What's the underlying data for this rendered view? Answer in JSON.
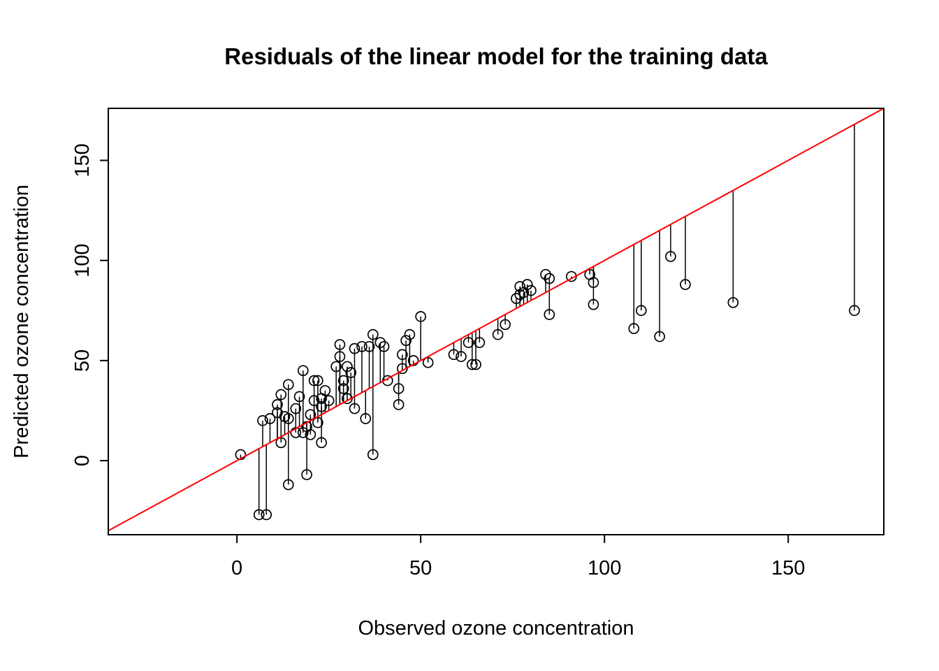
{
  "figure": {
    "title": "Residuals of the linear model for the training data",
    "xlabel": "Observed ozone concentration",
    "ylabel": "Predicted ozone concentration"
  },
  "chart_data": {
    "type": "scatter",
    "title": "Residuals of the linear model for the training data",
    "xlabel": "Observed ozone concentration",
    "ylabel": "Predicted ozone concentration",
    "xlim": [
      -35,
      176
    ],
    "ylim": [
      -37,
      176
    ],
    "x_ticks": [
      0,
      50,
      100,
      150
    ],
    "y_ticks": [
      0,
      50,
      100,
      150
    ],
    "grid": false,
    "legend": "none",
    "identity_line": {
      "equation": "y = x",
      "color": "#ff0000"
    },
    "residual_segments": {
      "shown": true,
      "color": "#000000"
    },
    "point_style": {
      "shape": "open-circle",
      "color": "#000000",
      "radius_px": 7
    },
    "points": [
      [
        1,
        3
      ],
      [
        6,
        -27
      ],
      [
        8,
        -27
      ],
      [
        7,
        20
      ],
      [
        9,
        21
      ],
      [
        11,
        28
      ],
      [
        11,
        24
      ],
      [
        12,
        9
      ],
      [
        12,
        33
      ],
      [
        13,
        22
      ],
      [
        14,
        38
      ],
      [
        14,
        21
      ],
      [
        14,
        -12
      ],
      [
        16,
        26
      ],
      [
        16,
        14
      ],
      [
        17,
        32
      ],
      [
        18,
        45
      ],
      [
        18,
        14
      ],
      [
        19,
        17
      ],
      [
        19,
        -7
      ],
      [
        20,
        13
      ],
      [
        20,
        23
      ],
      [
        21,
        30
      ],
      [
        21,
        40
      ],
      [
        22,
        19
      ],
      [
        22,
        40
      ],
      [
        23,
        27
      ],
      [
        23,
        31
      ],
      [
        23,
        9
      ],
      [
        24,
        35
      ],
      [
        25,
        30
      ],
      [
        27,
        47
      ],
      [
        28,
        58
      ],
      [
        28,
        52
      ],
      [
        29,
        36
      ],
      [
        29,
        40
      ],
      [
        30,
        31
      ],
      [
        30,
        47
      ],
      [
        31,
        44
      ],
      [
        32,
        56
      ],
      [
        32,
        26
      ],
      [
        34,
        57
      ],
      [
        35,
        21
      ],
      [
        36,
        57
      ],
      [
        37,
        3
      ],
      [
        37,
        63
      ],
      [
        39,
        59
      ],
      [
        40,
        57
      ],
      [
        41,
        40
      ],
      [
        44,
        28
      ],
      [
        44,
        36
      ],
      [
        45,
        46
      ],
      [
        45,
        53
      ],
      [
        46,
        60
      ],
      [
        47,
        63
      ],
      [
        48,
        50
      ],
      [
        50,
        72
      ],
      [
        52,
        49
      ],
      [
        59,
        53
      ],
      [
        61,
        52
      ],
      [
        63,
        59
      ],
      [
        64,
        48
      ],
      [
        65,
        48
      ],
      [
        66,
        59
      ],
      [
        71,
        63
      ],
      [
        73,
        68
      ],
      [
        76,
        81
      ],
      [
        77,
        83
      ],
      [
        77,
        87
      ],
      [
        78,
        84
      ],
      [
        79,
        88
      ],
      [
        80,
        85
      ],
      [
        84,
        93
      ],
      [
        85,
        91
      ],
      [
        85,
        73
      ],
      [
        91,
        92
      ],
      [
        96,
        93
      ],
      [
        97,
        89
      ],
      [
        97,
        78
      ],
      [
        108,
        66
      ],
      [
        110,
        75
      ],
      [
        115,
        62
      ],
      [
        118,
        102
      ],
      [
        122,
        88
      ],
      [
        135,
        79
      ],
      [
        168,
        75
      ]
    ]
  }
}
